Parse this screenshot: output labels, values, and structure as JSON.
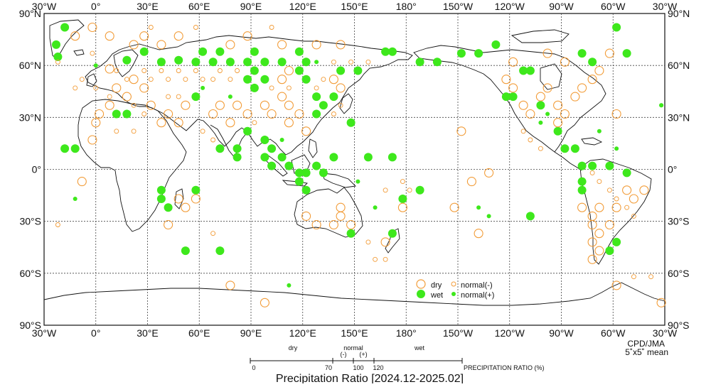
{
  "map": {
    "title": "Precipitation Ratio [2024.12-2025.02]",
    "credit": "CPD/JMA",
    "grid_note": "5˚x5˚ mean",
    "lon_labels_top": [
      "30°W",
      "0°",
      "30°E",
      "60°E",
      "90°E",
      "120°E",
      "150°E",
      "180°",
      "150°W",
      "120°W",
      "90°W",
      "60°W",
      "30°W"
    ],
    "lon_labels_bottom": [
      "30°W",
      "0°",
      "30°E",
      "60°E",
      "90°E",
      "120°E",
      "150°E",
      "180°",
      "150°W",
      "120°W",
      "90°W",
      "60°W",
      "30°W"
    ],
    "lat_labels": [
      "90°N",
      "60°N",
      "30°N",
      "0°",
      "30°S",
      "60°S",
      "90°S"
    ],
    "colors": {
      "dry": "#f29c38",
      "wet": "#3ee81c",
      "grid": "#444444",
      "coast": "#111111"
    }
  },
  "legend": {
    "dry": "dry",
    "wet": "wet",
    "normal_minus": "normal(-)",
    "normal_plus": "normal(+)"
  },
  "scale": {
    "label": "PRECIPITATION RATIO  (%)",
    "dry": "dry",
    "normal": "normal",
    "minus": "(-)",
    "plus": "(+)",
    "wet": "wet",
    "ticks": [
      "0",
      "70",
      "100",
      "120"
    ]
  },
  "points": [
    {
      "lon": -18,
      "lat": 82,
      "cls": "wet"
    },
    {
      "lon": -23,
      "lat": 72,
      "cls": "wet"
    },
    {
      "lon": -22,
      "lat": 65,
      "cls": "wet"
    },
    {
      "lon": 0,
      "lat": 60,
      "cls": "nplus"
    },
    {
      "lon": 8,
      "lat": 58,
      "cls": "dry"
    },
    {
      "lon": 18,
      "lat": 63,
      "cls": "wet"
    },
    {
      "lon": 28,
      "lat": 68,
      "cls": "wet"
    },
    {
      "lon": 38,
      "lat": 62,
      "cls": "wet"
    },
    {
      "lon": 48,
      "lat": 63,
      "cls": "wet"
    },
    {
      "lon": 58,
      "lat": 62,
      "cls": "wet"
    },
    {
      "lon": 62,
      "lat": 68,
      "cls": "wet"
    },
    {
      "lon": 68,
      "lat": 62,
      "cls": "wet"
    },
    {
      "lon": 72,
      "lat": 68,
      "cls": "wet"
    },
    {
      "lon": 78,
      "lat": 62,
      "cls": "wet"
    },
    {
      "lon": 88,
      "lat": 62,
      "cls": "wet"
    },
    {
      "lon": 92,
      "lat": 68,
      "cls": "wet"
    },
    {
      "lon": 98,
      "lat": 62,
      "cls": "wet"
    },
    {
      "lon": 92,
      "lat": 57,
      "cls": "wet"
    },
    {
      "lon": 88,
      "lat": 52,
      "cls": "wet"
    },
    {
      "lon": 92,
      "lat": 47,
      "cls": "wet"
    },
    {
      "lon": 98,
      "lat": 52,
      "cls": "wet"
    },
    {
      "lon": 118,
      "lat": 68,
      "cls": "wet"
    },
    {
      "lon": 122,
      "lat": 62,
      "cls": "wet"
    },
    {
      "lon": 118,
      "lat": 57,
      "cls": "wet"
    },
    {
      "lon": 122,
      "lat": 52,
      "cls": "wet"
    },
    {
      "lon": 108,
      "lat": 62,
      "cls": "wet"
    },
    {
      "lon": 128,
      "lat": 62,
      "cls": "nplus"
    },
    {
      "lon": 142,
      "lat": 57,
      "cls": "wet"
    },
    {
      "lon": 152,
      "lat": 57,
      "cls": "wet"
    },
    {
      "lon": 168,
      "lat": 68,
      "cls": "wet"
    },
    {
      "lon": 172,
      "lat": 68,
      "cls": "wet"
    },
    {
      "lon": 188,
      "lat": 62,
      "cls": "wet"
    },
    {
      "lon": 198,
      "lat": 62,
      "cls": "wet"
    },
    {
      "lon": 212,
      "lat": 67,
      "cls": "wet"
    },
    {
      "lon": 222,
      "lat": 67,
      "cls": "wet"
    },
    {
      "lon": 232,
      "lat": 72,
      "cls": "wet"
    },
    {
      "lon": 248,
      "lat": 57,
      "cls": "wet"
    },
    {
      "lon": 252,
      "lat": 57,
      "cls": "wet"
    },
    {
      "lon": 282,
      "lat": 67,
      "cls": "wet"
    },
    {
      "lon": 288,
      "lat": 62,
      "cls": "wet"
    },
    {
      "lon": 302,
      "lat": 82,
      "cls": "wet"
    },
    {
      "lon": 308,
      "lat": 67,
      "cls": "wet"
    },
    {
      "lon": 238,
      "lat": 42,
      "cls": "wet"
    },
    {
      "lon": 242,
      "lat": 42,
      "cls": "wet"
    },
    {
      "lon": 258,
      "lat": 37,
      "cls": "wet"
    },
    {
      "lon": 58,
      "lat": 42,
      "cls": "wet"
    },
    {
      "lon": 128,
      "lat": 42,
      "cls": "wet"
    },
    {
      "lon": 132,
      "lat": 37,
      "cls": "wet"
    },
    {
      "lon": 128,
      "lat": 32,
      "cls": "wet"
    },
    {
      "lon": 138,
      "lat": 42,
      "cls": "wet"
    },
    {
      "lon": 148,
      "lat": 27,
      "cls": "wet"
    },
    {
      "lon": -18,
      "lat": 12,
      "cls": "wet"
    },
    {
      "lon": -12,
      "lat": 12,
      "cls": "wet"
    },
    {
      "lon": 12,
      "lat": 32,
      "cls": "wet"
    },
    {
      "lon": 18,
      "lat": 32,
      "cls": "wet"
    },
    {
      "lon": 72,
      "lat": 12,
      "cls": "wet"
    },
    {
      "lon": 82,
      "lat": 12,
      "cls": "wet"
    },
    {
      "lon": 82,
      "lat": 7,
      "cls": "wet"
    },
    {
      "lon": 88,
      "lat": 22,
      "cls": "wet"
    },
    {
      "lon": 98,
      "lat": 17,
      "cls": "wet"
    },
    {
      "lon": 98,
      "lat": 7,
      "cls": "wet"
    },
    {
      "lon": 102,
      "lat": 12,
      "cls": "wet"
    },
    {
      "lon": 102,
      "lat": 2,
      "cls": "wet"
    },
    {
      "lon": 108,
      "lat": 7,
      "cls": "wet"
    },
    {
      "lon": 112,
      "lat": 2,
      "cls": "wet"
    },
    {
      "lon": 118,
      "lat": -2,
      "cls": "wet"
    },
    {
      "lon": 122,
      "lat": -2,
      "cls": "wet"
    },
    {
      "lon": 118,
      "lat": -7,
      "cls": "wet"
    },
    {
      "lon": 122,
      "lat": -12,
      "cls": "wet"
    },
    {
      "lon": 128,
      "lat": 2,
      "cls": "wet"
    },
    {
      "lon": 132,
      "lat": -2,
      "cls": "wet"
    },
    {
      "lon": 138,
      "lat": 7,
      "cls": "wet"
    },
    {
      "lon": 158,
      "lat": 7,
      "cls": "wet"
    },
    {
      "lon": 172,
      "lat": 7,
      "cls": "wet"
    },
    {
      "lon": 178,
      "lat": -17,
      "cls": "wet"
    },
    {
      "lon": 188,
      "lat": -12,
      "cls": "wet"
    },
    {
      "lon": 148,
      "lat": -37,
      "cls": "wet"
    },
    {
      "lon": 172,
      "lat": -37,
      "cls": "wet"
    },
    {
      "lon": 38,
      "lat": -12,
      "cls": "wet"
    },
    {
      "lon": 38,
      "lat": -17,
      "cls": "wet"
    },
    {
      "lon": 42,
      "lat": -22,
      "cls": "wet"
    },
    {
      "lon": 52,
      "lat": -47,
      "cls": "wet"
    },
    {
      "lon": 58,
      "lat": -12,
      "cls": "wet"
    },
    {
      "lon": 72,
      "lat": -47,
      "cls": "wet"
    },
    {
      "lon": 252,
      "lat": -27,
      "cls": "wet"
    },
    {
      "lon": 268,
      "lat": 22,
      "cls": "wet"
    },
    {
      "lon": 272,
      "lat": 12,
      "cls": "wet"
    },
    {
      "lon": 278,
      "lat": 12,
      "cls": "wet"
    },
    {
      "lon": 282,
      "lat": 2,
      "cls": "wet"
    },
    {
      "lon": 282,
      "lat": -7,
      "cls": "wet"
    },
    {
      "lon": 282,
      "lat": -12,
      "cls": "wet"
    },
    {
      "lon": 288,
      "lat": 2,
      "cls": "wet"
    },
    {
      "lon": 298,
      "lat": 2,
      "cls": "wet"
    },
    {
      "lon": 308,
      "lat": -2,
      "cls": "wet"
    },
    {
      "lon": 302,
      "lat": -42,
      "cls": "wet"
    },
    {
      "lon": 298,
      "lat": -47,
      "cls": "wet"
    },
    {
      "lon": -32,
      "lat": 37,
      "cls": "nplus"
    },
    {
      "lon": 328,
      "lat": 37,
      "cls": "nplus"
    },
    {
      "lon": -12,
      "lat": -17,
      "cls": "nplus"
    },
    {
      "lon": 62,
      "lat": 47,
      "cls": "nplus"
    },
    {
      "lon": 78,
      "lat": 42,
      "cls": "nplus"
    },
    {
      "lon": 108,
      "lat": 17,
      "cls": "nplus"
    },
    {
      "lon": 152,
      "lat": -7,
      "cls": "nplus"
    },
    {
      "lon": 162,
      "lat": -22,
      "cls": "nplus"
    },
    {
      "lon": 112,
      "lat": -67,
      "cls": "nplus"
    },
    {
      "lon": 222,
      "lat": -22,
      "cls": "nplus"
    },
    {
      "lon": 228,
      "lat": -27,
      "cls": "nplus"
    },
    {
      "lon": 258,
      "lat": 27,
      "cls": "nplus"
    },
    {
      "lon": 262,
      "lat": 32,
      "cls": "nplus"
    },
    {
      "lon": 292,
      "lat": 22,
      "cls": "nplus"
    },
    {
      "lon": 302,
      "lat": 12,
      "cls": "nplus"
    },
    {
      "lon": -8,
      "lat": -7,
      "cls": "dry"
    },
    {
      "lon": 0,
      "lat": 27,
      "cls": "dry"
    },
    {
      "lon": -2,
      "lat": 17,
      "cls": "dry"
    },
    {
      "lon": 2,
      "lat": 32,
      "cls": "dry"
    },
    {
      "lon": 8,
      "lat": 37,
      "cls": "dry"
    },
    {
      "lon": 12,
      "lat": 47,
      "cls": "dry"
    },
    {
      "lon": 18,
      "lat": 42,
      "cls": "dry"
    },
    {
      "lon": 22,
      "lat": 52,
      "cls": "dry"
    },
    {
      "lon": 28,
      "lat": 47,
      "cls": "dry"
    },
    {
      "lon": 32,
      "lat": 37,
      "cls": "dry"
    },
    {
      "lon": 38,
      "lat": 27,
      "cls": "dry"
    },
    {
      "lon": 42,
      "lat": 32,
      "cls": "dry"
    },
    {
      "lon": 48,
      "lat": 27,
      "cls": "dry"
    },
    {
      "lon": 52,
      "lat": 37,
      "cls": "dry"
    },
    {
      "lon": 68,
      "lat": 32,
      "cls": "dry"
    },
    {
      "lon": 72,
      "lat": 37,
      "cls": "dry"
    },
    {
      "lon": 78,
      "lat": 27,
      "cls": "dry"
    },
    {
      "lon": 82,
      "lat": 37,
      "cls": "dry"
    },
    {
      "lon": 88,
      "lat": 32,
      "cls": "dry"
    },
    {
      "lon": 98,
      "lat": 37,
      "cls": "dry"
    },
    {
      "lon": 102,
      "lat": 32,
      "cls": "dry"
    },
    {
      "lon": 108,
      "lat": 42,
      "cls": "dry"
    },
    {
      "lon": 112,
      "lat": 37,
      "cls": "dry"
    },
    {
      "lon": 118,
      "lat": 32,
      "cls": "dry"
    },
    {
      "lon": 112,
      "lat": 27,
      "cls": "dry"
    },
    {
      "lon": 122,
      "lat": 22,
      "cls": "dry"
    },
    {
      "lon": 108,
      "lat": 52,
      "cls": "dry"
    },
    {
      "lon": 112,
      "lat": 57,
      "cls": "dry"
    },
    {
      "lon": 138,
      "lat": 52,
      "cls": "dry"
    },
    {
      "lon": 142,
      "lat": 47,
      "cls": "dry"
    },
    {
      "lon": 22,
      "lat": 72,
      "cls": "dry"
    },
    {
      "lon": 28,
      "lat": 77,
      "cls": "dry"
    },
    {
      "lon": 38,
      "lat": 72,
      "cls": "dry"
    },
    {
      "lon": 48,
      "lat": 77,
      "cls": "dry"
    },
    {
      "lon": 78,
      "lat": 72,
      "cls": "dry"
    },
    {
      "lon": 88,
      "lat": 77,
      "cls": "dry"
    },
    {
      "lon": 108,
      "lat": 72,
      "cls": "dry"
    },
    {
      "lon": 128,
      "lat": 72,
      "cls": "dry"
    },
    {
      "lon": 142,
      "lat": 72,
      "cls": "dry"
    },
    {
      "lon": -2,
      "lat": 82,
      "cls": "dry"
    },
    {
      "lon": -12,
      "lat": 77,
      "cls": "dry"
    },
    {
      "lon": 8,
      "lat": 77,
      "cls": "dry"
    },
    {
      "lon": 238,
      "lat": 52,
      "cls": "dry"
    },
    {
      "lon": 242,
      "lat": 47,
      "cls": "dry"
    },
    {
      "lon": 248,
      "lat": 37,
      "cls": "dry"
    },
    {
      "lon": 252,
      "lat": 32,
      "cls": "dry"
    },
    {
      "lon": 258,
      "lat": 42,
      "cls": "dry"
    },
    {
      "lon": 262,
      "lat": 47,
      "cls": "dry"
    },
    {
      "lon": 268,
      "lat": 37,
      "cls": "dry"
    },
    {
      "lon": 268,
      "lat": 27,
      "cls": "dry"
    },
    {
      "lon": 272,
      "lat": 32,
      "cls": "dry"
    },
    {
      "lon": 278,
      "lat": 42,
      "cls": "dry"
    },
    {
      "lon": 282,
      "lat": 47,
      "cls": "dry"
    },
    {
      "lon": 288,
      "lat": 52,
      "cls": "dry"
    },
    {
      "lon": 292,
      "lat": 57,
      "cls": "dry"
    },
    {
      "lon": 272,
      "lat": 62,
      "cls": "dry"
    },
    {
      "lon": 262,
      "lat": 67,
      "cls": "dry"
    },
    {
      "lon": 298,
      "lat": 67,
      "cls": "dry"
    },
    {
      "lon": 302,
      "lat": 32,
      "cls": "dry"
    },
    {
      "lon": 242,
      "lat": 62,
      "cls": "dry"
    },
    {
      "lon": 212,
      "lat": 22,
      "cls": "dry"
    },
    {
      "lon": 218,
      "lat": -7,
      "cls": "dry"
    },
    {
      "lon": 222,
      "lat": -37,
      "cls": "dry"
    },
    {
      "lon": 228,
      "lat": -2,
      "cls": "dry"
    },
    {
      "lon": 142,
      "lat": -27,
      "cls": "dry"
    },
    {
      "lon": 138,
      "lat": -32,
      "cls": "dry"
    },
    {
      "lon": 148,
      "lat": -32,
      "cls": "dry"
    },
    {
      "lon": 142,
      "lat": -22,
      "cls": "dry"
    },
    {
      "lon": 128,
      "lat": -32,
      "cls": "dry"
    },
    {
      "lon": 122,
      "lat": -27,
      "cls": "dry"
    },
    {
      "lon": 168,
      "lat": -42,
      "cls": "dry"
    },
    {
      "lon": 178,
      "lat": -22,
      "cls": "dry"
    },
    {
      "lon": 208,
      "lat": -22,
      "cls": "dry"
    },
    {
      "lon": 48,
      "lat": -17,
      "cls": "dry"
    },
    {
      "lon": 52,
      "lat": -22,
      "cls": "dry"
    },
    {
      "lon": 58,
      "lat": -17,
      "cls": "dry"
    },
    {
      "lon": 42,
      "lat": -32,
      "cls": "dry"
    },
    {
      "lon": 282,
      "lat": -22,
      "cls": "dry"
    },
    {
      "lon": 288,
      "lat": -27,
      "cls": "dry"
    },
    {
      "lon": 292,
      "lat": -22,
      "cls": "dry"
    },
    {
      "lon": 288,
      "lat": -32,
      "cls": "dry"
    },
    {
      "lon": 292,
      "lat": -37,
      "cls": "dry"
    },
    {
      "lon": 288,
      "lat": -42,
      "cls": "dry"
    },
    {
      "lon": 292,
      "lat": -47,
      "cls": "dry"
    },
    {
      "lon": 288,
      "lat": -52,
      "cls": "dry"
    },
    {
      "lon": 298,
      "lat": -32,
      "cls": "dry"
    },
    {
      "lon": 302,
      "lat": -22,
      "cls": "dry"
    },
    {
      "lon": 308,
      "lat": -12,
      "cls": "dry"
    },
    {
      "lon": 318,
      "lat": -12,
      "cls": "dry"
    },
    {
      "lon": 312,
      "lat": -17,
      "cls": "dry"
    },
    {
      "lon": 78,
      "lat": -67,
      "cls": "dry"
    },
    {
      "lon": 98,
      "lat": -77,
      "cls": "dry"
    },
    {
      "lon": 302,
      "lat": -67,
      "cls": "dry"
    },
    {
      "lon": 328,
      "lat": -77,
      "cls": "dry"
    },
    {
      "lon": -12,
      "lat": 47,
      "cls": "nminus"
    },
    {
      "lon": -8,
      "lat": 52,
      "cls": "nminus"
    },
    {
      "lon": 0,
      "lat": 47,
      "cls": "nminus"
    },
    {
      "lon": 8,
      "lat": 42,
      "cls": "nminus"
    },
    {
      "lon": 12,
      "lat": 57,
      "cls": "nminus"
    },
    {
      "lon": 18,
      "lat": 52,
      "cls": "nminus"
    },
    {
      "lon": 28,
      "lat": 57,
      "cls": "nminus"
    },
    {
      "lon": 32,
      "lat": 52,
      "cls": "nminus"
    },
    {
      "lon": 38,
      "lat": 57,
      "cls": "nminus"
    },
    {
      "lon": 42,
      "lat": 52,
      "cls": "nminus"
    },
    {
      "lon": 48,
      "lat": 57,
      "cls": "nminus"
    },
    {
      "lon": 52,
      "lat": 52,
      "cls": "nminus"
    },
    {
      "lon": 58,
      "lat": 57,
      "cls": "nminus"
    },
    {
      "lon": 62,
      "lat": 52,
      "cls": "nminus"
    },
    {
      "lon": 68,
      "lat": 52,
      "cls": "nminus"
    },
    {
      "lon": 72,
      "lat": 57,
      "cls": "nminus"
    },
    {
      "lon": 78,
      "lat": 52,
      "cls": "nminus"
    },
    {
      "lon": 82,
      "lat": 57,
      "cls": "nminus"
    },
    {
      "lon": 102,
      "lat": 47,
      "cls": "nminus"
    },
    {
      "lon": 112,
      "lat": 47,
      "cls": "nminus"
    },
    {
      "lon": 128,
      "lat": 47,
      "cls": "nminus"
    },
    {
      "lon": 132,
      "lat": 52,
      "cls": "nminus"
    },
    {
      "lon": 138,
      "lat": 62,
      "cls": "nminus"
    },
    {
      "lon": 148,
      "lat": 62,
      "cls": "nminus"
    },
    {
      "lon": 158,
      "lat": 62,
      "cls": "nminus"
    },
    {
      "lon": 42,
      "lat": 42,
      "cls": "nminus"
    },
    {
      "lon": 48,
      "lat": 42,
      "cls": "nminus"
    },
    {
      "lon": 22,
      "lat": 37,
      "cls": "nminus"
    },
    {
      "lon": 28,
      "lat": 32,
      "cls": "nminus"
    },
    {
      "lon": 12,
      "lat": 22,
      "cls": "nminus"
    },
    {
      "lon": 22,
      "lat": 22,
      "cls": "nminus"
    },
    {
      "lon": 62,
      "lat": 22,
      "cls": "nminus"
    },
    {
      "lon": 68,
      "lat": 17,
      "cls": "nminus"
    },
    {
      "lon": 92,
      "lat": 27,
      "cls": "nminus"
    },
    {
      "lon": 138,
      "lat": 32,
      "cls": "nminus"
    },
    {
      "lon": 142,
      "lat": 37,
      "cls": "nminus"
    },
    {
      "lon": 248,
      "lat": 22,
      "cls": "nminus"
    },
    {
      "lon": 252,
      "lat": 17,
      "cls": "nminus"
    },
    {
      "lon": 258,
      "lat": 12,
      "cls": "nminus"
    },
    {
      "lon": 288,
      "lat": -2,
      "cls": "nminus"
    },
    {
      "lon": 292,
      "lat": -7,
      "cls": "nminus"
    },
    {
      "lon": 298,
      "lat": -12,
      "cls": "nminus"
    },
    {
      "lon": 302,
      "lat": -17,
      "cls": "nminus"
    },
    {
      "lon": 308,
      "lat": -22,
      "cls": "nminus"
    },
    {
      "lon": 312,
      "lat": -27,
      "cls": "nminus"
    },
    {
      "lon": 168,
      "lat": -12,
      "cls": "nminus"
    },
    {
      "lon": 178,
      "lat": -7,
      "cls": "nminus"
    },
    {
      "lon": 182,
      "lat": -12,
      "cls": "nminus"
    },
    {
      "lon": 158,
      "lat": -42,
      "cls": "nminus"
    },
    {
      "lon": 162,
      "lat": -52,
      "cls": "nminus"
    },
    {
      "lon": 168,
      "lat": -52,
      "cls": "nminus"
    },
    {
      "lon": -22,
      "lat": 62,
      "cls": "nminus"
    },
    {
      "lon": -2,
      "lat": 67,
      "cls": "nminus"
    },
    {
      "lon": 32,
      "lat": 82,
      "cls": "nminus"
    },
    {
      "lon": 58,
      "lat": 82,
      "cls": "nminus"
    },
    {
      "lon": 102,
      "lat": 82,
      "cls": "nminus"
    },
    {
      "lon": 312,
      "lat": -62,
      "cls": "nminus"
    },
    {
      "lon": 322,
      "lat": -62,
      "cls": "nminus"
    },
    {
      "lon": -22,
      "lat": -32,
      "cls": "nminus"
    },
    {
      "lon": 68,
      "lat": -37,
      "cls": "nminus"
    }
  ]
}
